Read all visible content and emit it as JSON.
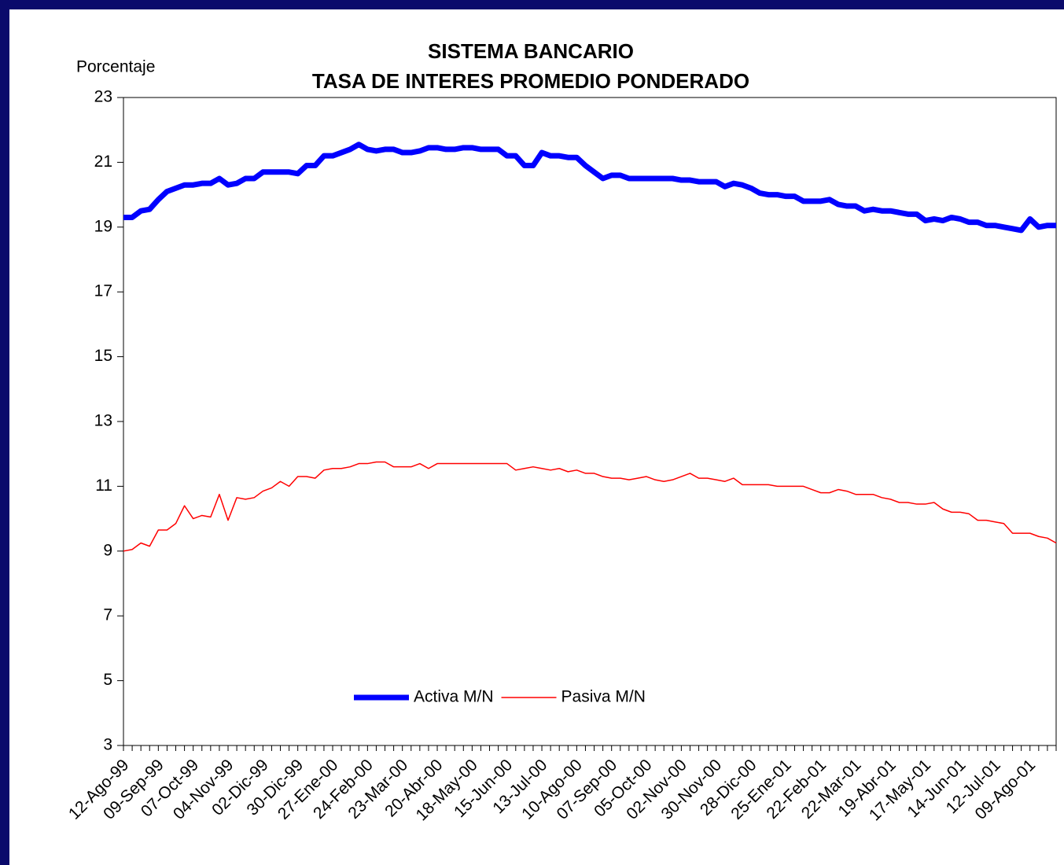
{
  "chart_data": {
    "type": "line",
    "title": [
      "SISTEMA BANCARIO",
      "TASA DE INTERES PROMEDIO PONDERADO"
    ],
    "y_label": "Porcentaje",
    "categories": [
      "12-Ago-99",
      null,
      null,
      null,
      "09-Sep-99",
      null,
      null,
      null,
      "07-Oct-99",
      null,
      null,
      null,
      "04-Nov-99",
      null,
      null,
      null,
      "02-Dic-99",
      null,
      null,
      null,
      "30-Dic-99",
      null,
      null,
      null,
      "27-Ene-00",
      null,
      null,
      null,
      "24-Feb-00",
      null,
      null,
      null,
      "23-Mar-00",
      null,
      null,
      null,
      "20-Abr-00",
      null,
      null,
      null,
      "18-May-00",
      null,
      null,
      null,
      "15-Jun-00",
      null,
      null,
      null,
      "13-Jul-00",
      null,
      null,
      null,
      "10-Ago-00",
      null,
      null,
      null,
      "07-Sep-00",
      null,
      null,
      null,
      "05-Oct-00",
      null,
      null,
      null,
      "02-Nov-00",
      null,
      null,
      null,
      "30-Nov-00",
      null,
      null,
      null,
      "28-Dic-00",
      null,
      null,
      null,
      "25-Ene-01",
      null,
      null,
      null,
      "22-Feb-01",
      null,
      null,
      null,
      "22-Mar-01",
      null,
      null,
      null,
      "19-Abr-01",
      null,
      null,
      null,
      "17-May-01",
      null,
      null,
      null,
      "14-Jun-01",
      null,
      null,
      null,
      "12-Jul-01",
      null,
      null,
      null,
      "09-Ago-01",
      null,
      null,
      null
    ],
    "series": [
      {
        "name": "Activa M/N",
        "color": "#0000ff",
        "values": [
          19.3,
          19.3,
          19.5,
          19.55,
          19.85,
          20.1,
          20.2,
          20.3,
          20.3,
          20.35,
          20.35,
          20.5,
          20.3,
          20.35,
          20.5,
          20.5,
          20.7,
          20.7,
          20.7,
          20.7,
          20.65,
          20.9,
          20.9,
          21.2,
          21.2,
          21.3,
          21.4,
          21.55,
          21.4,
          21.35,
          21.4,
          21.4,
          21.3,
          21.3,
          21.35,
          21.45,
          21.45,
          21.4,
          21.4,
          21.45,
          21.45,
          21.4,
          21.4,
          21.4,
          21.2,
          21.2,
          20.9,
          20.9,
          21.3,
          21.2,
          21.2,
          21.15,
          21.15,
          20.9,
          20.7,
          20.5,
          20.6,
          20.6,
          20.5,
          20.5,
          20.5,
          20.5,
          20.5,
          20.5,
          20.45,
          20.45,
          20.4,
          20.4,
          20.4,
          20.25,
          20.35,
          20.3,
          20.2,
          20.05,
          20.0,
          20.0,
          19.95,
          19.95,
          19.8,
          19.8,
          19.8,
          19.85,
          19.7,
          19.65,
          19.65,
          19.5,
          19.55,
          19.5,
          19.5,
          19.45,
          19.4,
          19.4,
          19.2,
          19.25,
          19.2,
          19.3,
          19.25,
          19.15,
          19.15,
          19.05,
          19.05,
          19.0,
          18.95,
          18.9,
          19.25,
          19.0,
          19.05,
          19.05
        ]
      },
      {
        "name": "Pasiva M/N",
        "color": "#ff0000",
        "values": [
          9.0,
          9.05,
          9.25,
          9.15,
          9.65,
          9.65,
          9.85,
          10.4,
          10.0,
          10.1,
          10.05,
          10.75,
          9.95,
          10.65,
          10.6,
          10.65,
          10.85,
          10.95,
          11.15,
          11.0,
          11.3,
          11.3,
          11.25,
          11.5,
          11.55,
          11.55,
          11.6,
          11.7,
          11.7,
          11.75,
          11.75,
          11.6,
          11.6,
          11.6,
          11.7,
          11.55,
          11.7,
          11.7,
          11.7,
          11.7,
          11.7,
          11.7,
          11.7,
          11.7,
          11.7,
          11.5,
          11.55,
          11.6,
          11.55,
          11.5,
          11.55,
          11.45,
          11.5,
          11.4,
          11.4,
          11.3,
          11.25,
          11.25,
          11.2,
          11.25,
          11.3,
          11.2,
          11.15,
          11.2,
          11.3,
          11.4,
          11.25,
          11.25,
          11.2,
          11.15,
          11.25,
          11.05,
          11.05,
          11.05,
          11.05,
          11.0,
          11.0,
          11.0,
          11.0,
          10.9,
          10.8,
          10.8,
          10.9,
          10.85,
          10.75,
          10.75,
          10.75,
          10.65,
          10.6,
          10.5,
          10.5,
          10.45,
          10.45,
          10.5,
          10.3,
          10.2,
          10.2,
          10.15,
          9.95,
          9.95,
          9.9,
          9.85,
          9.55,
          9.55,
          9.55,
          9.45,
          9.4,
          9.25
        ]
      }
    ],
    "ylim": [
      3,
      23
    ],
    "yticks": [
      3,
      5,
      7,
      9,
      11,
      13,
      15,
      17,
      19,
      21,
      23
    ]
  }
}
